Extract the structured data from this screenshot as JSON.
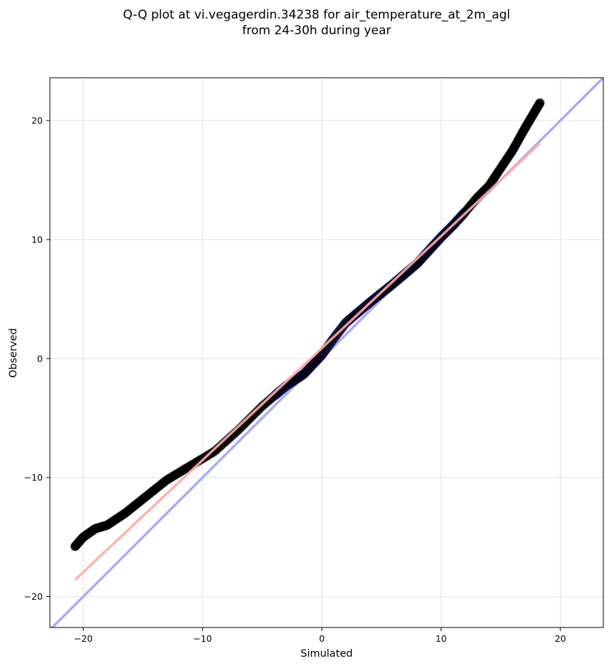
{
  "chart_data": {
    "type": "scatter",
    "title": "Q-Q plot at vi.vegagerdin.34238 for air_temperature_at_2m_agl",
    "subtitle": "from 24-30h during year",
    "xlabel": "Simulated",
    "ylabel": "Observed",
    "xlim": [
      -22.8,
      23.6
    ],
    "ylim": [
      -22.6,
      23.6
    ],
    "xticks": [
      -20,
      -10,
      0,
      10,
      20
    ],
    "yticks": [
      -20,
      -10,
      0,
      10,
      20
    ],
    "xtick_labels": [
      "−20",
      "−10",
      "0",
      "10",
      "20"
    ],
    "ytick_labels": [
      "−20",
      "−10",
      "0",
      "10",
      "20"
    ],
    "grid": true,
    "legend": "none",
    "colors": {
      "points": "#000000",
      "identity_line": "#aaaaff",
      "fit_line": "#ffaaaa",
      "inner_points": "#00006e"
    },
    "quantile_anchors": {
      "x": [
        -20.7,
        -20.0,
        -19.0,
        -18.0,
        -16.5,
        -15.0,
        -13.0,
        -11.0,
        -9.0,
        -7.0,
        -5.0,
        -3.0,
        -1.5,
        0.0,
        1.0,
        2.0,
        4.0,
        6.0,
        8.0,
        10.0,
        11.0,
        12.0,
        13.0,
        14.0,
        15.0,
        16.0,
        17.0,
        18.3
      ],
      "y": [
        -15.8,
        -15.0,
        -14.3,
        -14.0,
        -13.0,
        -11.8,
        -10.2,
        -9.0,
        -7.8,
        -6.0,
        -4.0,
        -2.3,
        -1.3,
        0.3,
        1.7,
        3.0,
        4.7,
        6.3,
        8.0,
        10.2,
        11.2,
        12.3,
        13.5,
        14.5,
        16.0,
        17.5,
        19.3,
        21.5
      ]
    },
    "series": [
      {
        "type": "line",
        "x": [
          -22.8,
          23.6
        ],
        "y": [
          -22.8,
          23.6
        ]
      },
      {
        "type": "line",
        "x": [
          -20.7,
          18.3
        ],
        "y": [
          -18.6,
          18.1
        ]
      }
    ]
  }
}
